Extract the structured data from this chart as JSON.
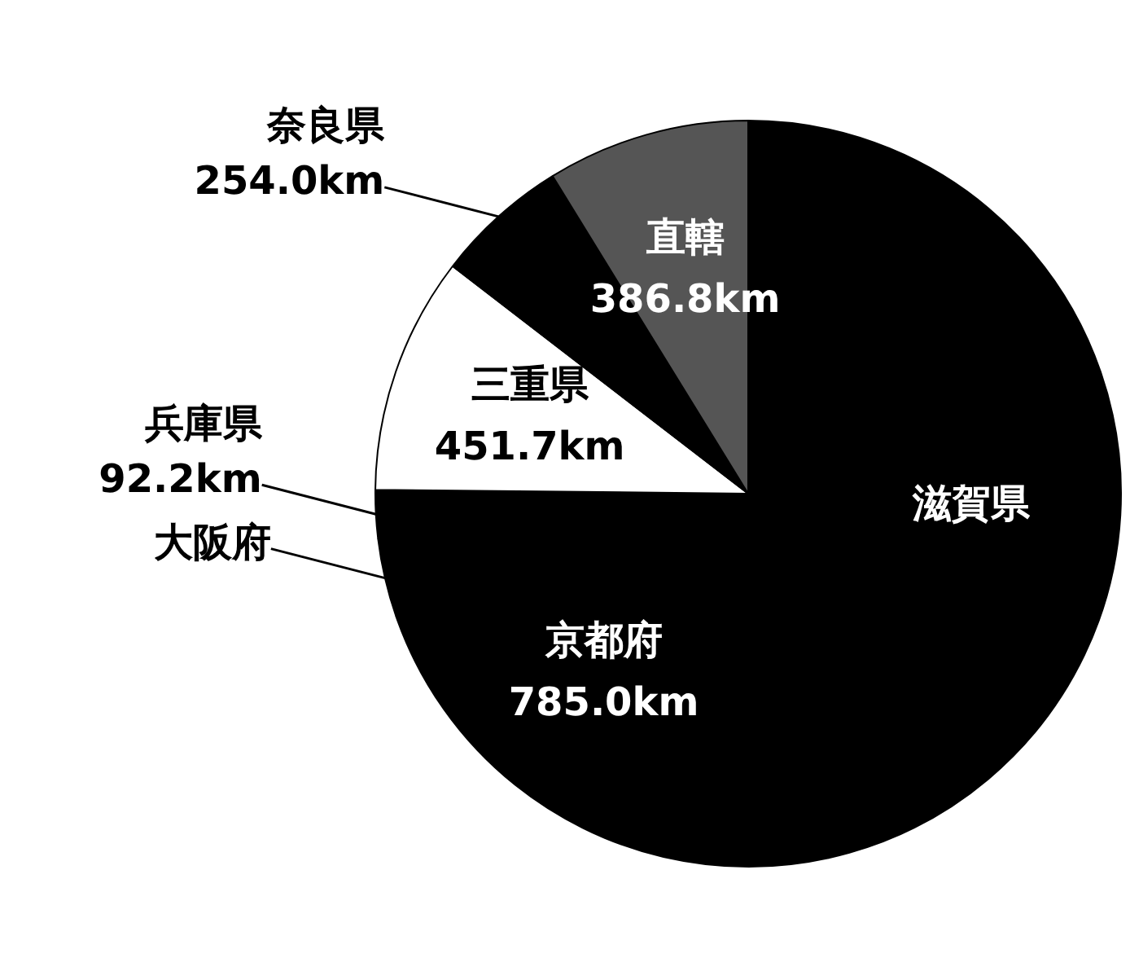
{
  "chart_data": {
    "type": "pie",
    "categories": [
      "滋賀県",
      "京都府",
      "大阪府",
      "兵庫県",
      "三重県",
      "奈良県",
      "直轄"
    ],
    "values": [
      2280,
      785.0,
      150,
      92.2,
      451.7,
      254.0,
      386.8
    ],
    "colors": [
      "#000000",
      "#000000",
      "#000000",
      "#000000",
      "#ffffff",
      "#000000",
      "#555555"
    ],
    "value_labels": [
      null,
      "785.0km",
      null,
      "92.2km",
      "451.7km",
      "254.0km",
      "386.8km"
    ],
    "legend": false
  }
}
